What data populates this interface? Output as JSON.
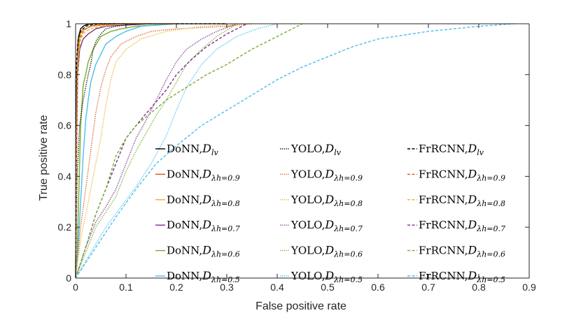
{
  "chart_data": {
    "type": "line",
    "title": "",
    "xlabel": "False positive rate",
    "ylabel": "True positive rate",
    "xlim": [
      0,
      0.9
    ],
    "ylim": [
      0,
      1
    ],
    "xticks": [
      "0",
      "0.1",
      "0.2",
      "0.3",
      "0.4",
      "0.5",
      "0.6",
      "0.7",
      "0.8",
      "0.9"
    ],
    "yticks": [
      "0",
      "0.2",
      "0.4",
      "0.6",
      "0.8",
      "1"
    ],
    "legend_position": "lower-right",
    "legend_columns": 3,
    "series": [
      {
        "name": "DoNN,D_lv",
        "model": "DoNN",
        "sub": "lv",
        "color": "#000000",
        "style": "solid",
        "x": [
          0,
          0.002,
          0.004,
          0.006,
          0.01,
          0.015,
          0.02,
          0.03,
          0.05,
          0.08,
          0.12
        ],
        "y": [
          0,
          0.75,
          0.9,
          0.95,
          0.98,
          0.99,
          0.995,
          1,
          1,
          1,
          1
        ]
      },
      {
        "name": "DoNN,D_λh=0.9",
        "model": "DoNN",
        "sub": "λh=0.9",
        "color": "#d95319",
        "style": "solid",
        "x": [
          0,
          0.002,
          0.004,
          0.008,
          0.012,
          0.02,
          0.03,
          0.05,
          0.08,
          0.15
        ],
        "y": [
          0,
          0.6,
          0.85,
          0.95,
          0.97,
          0.98,
          0.99,
          0.995,
          1,
          1
        ]
      },
      {
        "name": "DoNN,D_λh=0.8",
        "model": "DoNN",
        "sub": "λh=0.8",
        "color": "#edb120",
        "style": "solid",
        "x": [
          0,
          0.002,
          0.004,
          0.008,
          0.012,
          0.02,
          0.03,
          0.05,
          0.08,
          0.15
        ],
        "y": [
          0,
          0.65,
          0.88,
          0.95,
          0.97,
          0.98,
          0.99,
          0.995,
          1,
          1
        ]
      },
      {
        "name": "DoNN,D_λh=0.7",
        "model": "DoNN",
        "sub": "λh=0.7",
        "color": "#7e2f8e",
        "style": "solid",
        "x": [
          0,
          0.002,
          0.004,
          0.008,
          0.015,
          0.025,
          0.04,
          0.06,
          0.1,
          0.15
        ],
        "y": [
          0,
          0.5,
          0.8,
          0.9,
          0.94,
          0.96,
          0.98,
          0.99,
          0.995,
          1
        ]
      },
      {
        "name": "DoNN,D_λh=0.6",
        "model": "DoNN",
        "sub": "λh=0.6",
        "color": "#77ac30",
        "style": "solid",
        "x": [
          0,
          0.003,
          0.006,
          0.01,
          0.015,
          0.02,
          0.025,
          0.035,
          0.05,
          0.07,
          0.09,
          0.12,
          0.2
        ],
        "y": [
          0,
          0.1,
          0.3,
          0.6,
          0.76,
          0.8,
          0.85,
          0.9,
          0.95,
          0.97,
          0.98,
          0.99,
          1
        ]
      },
      {
        "name": "DoNN,D_λh=0.5",
        "model": "DoNN",
        "sub": "λh=0.5",
        "color": "#4dbeee",
        "style": "solid",
        "x": [
          0,
          0.005,
          0.01,
          0.015,
          0.02,
          0.025,
          0.03,
          0.04,
          0.05,
          0.06,
          0.08,
          0.1,
          0.13,
          0.2
        ],
        "y": [
          0,
          0.12,
          0.3,
          0.48,
          0.62,
          0.7,
          0.77,
          0.84,
          0.88,
          0.92,
          0.95,
          0.97,
          0.99,
          1
        ]
      },
      {
        "name": "YOLO,D_lv",
        "model": "YOLO",
        "sub": "lv",
        "color": "#000000",
        "style": "dotted",
        "x": [
          0,
          0.003,
          0.008,
          0.015,
          0.02,
          0.025,
          0.03,
          0.035,
          0.04,
          0.05,
          0.06,
          0.08,
          0.1,
          0.15,
          0.3
        ],
        "y": [
          0,
          0.4,
          0.6,
          0.7,
          0.75,
          0.8,
          0.84,
          0.9,
          0.93,
          0.96,
          0.98,
          0.99,
          0.995,
          1,
          1
        ]
      },
      {
        "name": "YOLO,D_λh=0.9",
        "model": "YOLO",
        "sub": "λh=0.9",
        "color": "#d95319",
        "style": "dotted",
        "x": [
          0,
          0.01,
          0.02,
          0.03,
          0.04,
          0.05,
          0.06,
          0.07,
          0.09,
          0.12,
          0.15,
          0.2,
          0.3,
          0.35
        ],
        "y": [
          0,
          0.2,
          0.35,
          0.5,
          0.65,
          0.75,
          0.82,
          0.87,
          0.92,
          0.95,
          0.97,
          0.98,
          0.99,
          1
        ]
      },
      {
        "name": "YOLO,D_λh=0.8",
        "model": "YOLO",
        "sub": "λh=0.8",
        "color": "#edb120",
        "style": "dotted",
        "x": [
          0,
          0.01,
          0.02,
          0.03,
          0.04,
          0.05,
          0.06,
          0.07,
          0.08,
          0.1,
          0.13,
          0.18,
          0.25,
          0.35
        ],
        "y": [
          0,
          0.15,
          0.25,
          0.35,
          0.45,
          0.55,
          0.68,
          0.78,
          0.85,
          0.9,
          0.94,
          0.97,
          0.99,
          1
        ]
      },
      {
        "name": "YOLO,D_λh=0.7",
        "model": "YOLO",
        "sub": "λh=0.7",
        "color": "#7e2f8e",
        "style": "dotted",
        "x": [
          0,
          0.02,
          0.04,
          0.06,
          0.08,
          0.1,
          0.12,
          0.14,
          0.16,
          0.18,
          0.2,
          0.22,
          0.25,
          0.28,
          0.32
        ],
        "y": [
          0,
          0.12,
          0.22,
          0.28,
          0.35,
          0.45,
          0.55,
          0.62,
          0.7,
          0.78,
          0.85,
          0.9,
          0.94,
          0.97,
          1
        ]
      },
      {
        "name": "YOLO,D_λh=0.6",
        "model": "YOLO",
        "sub": "λh=0.6",
        "color": "#77ac30",
        "style": "dotted",
        "x": [
          0,
          0.02,
          0.04,
          0.06,
          0.08,
          0.1,
          0.12,
          0.14,
          0.16,
          0.18,
          0.2,
          0.22,
          0.25,
          0.28,
          0.32
        ],
        "y": [
          0,
          0.1,
          0.2,
          0.26,
          0.32,
          0.42,
          0.5,
          0.57,
          0.64,
          0.7,
          0.77,
          0.84,
          0.9,
          0.95,
          1
        ]
      },
      {
        "name": "YOLO,D_λh=0.5",
        "model": "YOLO",
        "sub": "λh=0.5",
        "color": "#4dbeee",
        "style": "dotted",
        "x": [
          0,
          0.03,
          0.06,
          0.09,
          0.12,
          0.15,
          0.18,
          0.2,
          0.22,
          0.25,
          0.28,
          0.32,
          0.36,
          0.4
        ],
        "y": [
          0,
          0.1,
          0.2,
          0.28,
          0.36,
          0.45,
          0.56,
          0.66,
          0.75,
          0.84,
          0.9,
          0.95,
          0.98,
          1
        ]
      },
      {
        "name": "FrRCNN,D_lv",
        "model": "FrRCNN",
        "sub": "lv",
        "color": "#000000",
        "style": "dashed",
        "x": [
          0,
          0.002,
          0.005,
          0.01,
          0.015,
          0.02,
          0.03,
          0.05,
          0.1,
          0.2,
          0.3
        ],
        "y": [
          0,
          0.85,
          0.94,
          0.97,
          0.98,
          0.99,
          0.995,
          1,
          1,
          1,
          1
        ]
      },
      {
        "name": "FrRCNN,D_λh=0.9",
        "model": "FrRCNN",
        "sub": "λh=0.9",
        "color": "#d95319",
        "style": "dashed",
        "x": [
          0,
          0.003,
          0.006,
          0.01,
          0.015,
          0.02,
          0.03,
          0.05,
          0.1,
          0.2
        ],
        "y": [
          0,
          0.8,
          0.9,
          0.95,
          0.97,
          0.98,
          0.99,
          0.995,
          1,
          1
        ]
      },
      {
        "name": "FrRCNN,D_λh=0.8",
        "model": "FrRCNN",
        "sub": "λh=0.8",
        "color": "#edb120",
        "style": "dashed",
        "x": [
          0,
          0.003,
          0.006,
          0.01,
          0.015,
          0.02,
          0.03,
          0.05,
          0.1,
          0.2
        ],
        "y": [
          0,
          0.75,
          0.88,
          0.94,
          0.96,
          0.97,
          0.98,
          0.99,
          1,
          1
        ]
      },
      {
        "name": "FrRCNN,D_λh=0.7",
        "model": "FrRCNN",
        "sub": "λh=0.7",
        "color": "#7e2f8e",
        "style": "dashed",
        "x": [
          0,
          0.02,
          0.04,
          0.06,
          0.08,
          0.1,
          0.12,
          0.15,
          0.18,
          0.2,
          0.23,
          0.26,
          0.3,
          0.34
        ],
        "y": [
          0,
          0.12,
          0.25,
          0.35,
          0.45,
          0.55,
          0.6,
          0.67,
          0.74,
          0.8,
          0.86,
          0.91,
          0.96,
          1
        ]
      },
      {
        "name": "FrRCNN,D_λh=0.6",
        "model": "FrRCNN",
        "sub": "λh=0.6",
        "color": "#77ac30",
        "style": "dashed",
        "x": [
          0,
          0.02,
          0.04,
          0.06,
          0.08,
          0.1,
          0.12,
          0.15,
          0.18,
          0.22,
          0.26,
          0.3,
          0.35,
          0.4,
          0.45
        ],
        "y": [
          0,
          0.12,
          0.25,
          0.35,
          0.48,
          0.55,
          0.6,
          0.65,
          0.7,
          0.75,
          0.8,
          0.84,
          0.9,
          0.95,
          1
        ]
      },
      {
        "name": "FrRCNN,D_λh=0.5",
        "model": "FrRCNN",
        "sub": "λh=0.5",
        "color": "#4dbeee",
        "style": "dashed",
        "x": [
          0,
          0.04,
          0.08,
          0.12,
          0.16,
          0.2,
          0.25,
          0.3,
          0.35,
          0.4,
          0.45,
          0.5,
          0.55,
          0.6,
          0.7,
          0.8,
          0.87
        ],
        "y": [
          0,
          0.12,
          0.24,
          0.35,
          0.45,
          0.52,
          0.6,
          0.66,
          0.72,
          0.78,
          0.83,
          0.87,
          0.91,
          0.94,
          0.97,
          0.99,
          1
        ]
      }
    ]
  }
}
